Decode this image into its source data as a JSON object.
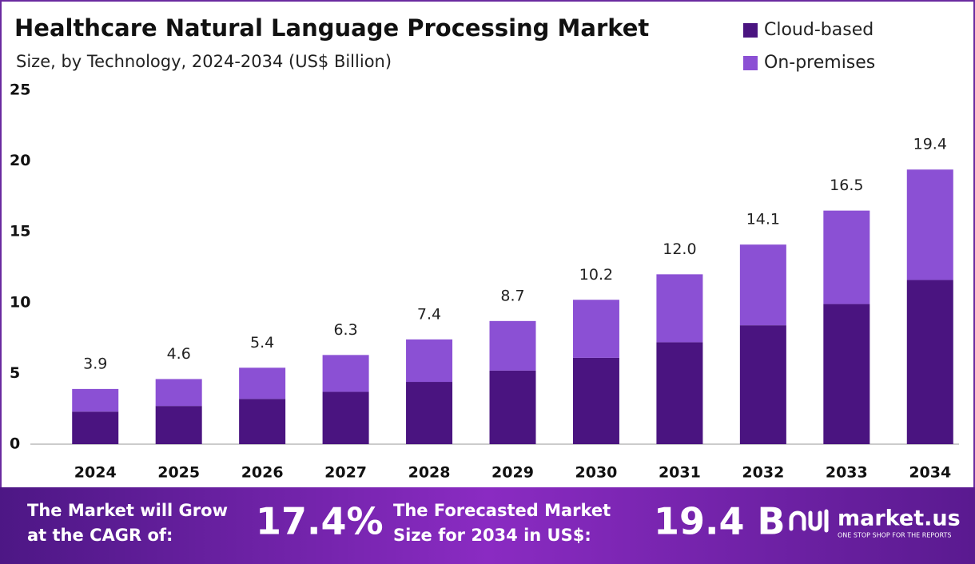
{
  "chart_data": {
    "type": "stacked_bar",
    "title": "Healthcare Natural Language Processing Market",
    "subtitle": "Size, by Technology, 2024-2034 (US$ Billion)",
    "categories": [
      "2024",
      "2025",
      "2026",
      "2027",
      "2028",
      "2029",
      "2030",
      "2031",
      "2032",
      "2033",
      "2034"
    ],
    "series": [
      {
        "name": "Cloud-based",
        "color": "#4a1480",
        "values": [
          2.3,
          2.7,
          3.2,
          3.7,
          4.4,
          5.2,
          6.1,
          7.2,
          8.4,
          9.9,
          11.6
        ]
      },
      {
        "name": "On-premises",
        "color": "#8b50d4",
        "values": [
          1.6,
          1.9,
          2.2,
          2.6,
          3.0,
          3.5,
          4.1,
          4.8,
          5.7,
          6.6,
          7.8
        ]
      }
    ],
    "value_labels": [
      "3.9",
      "4.6",
      "5.4",
      "6.3",
      "7.4",
      "8.7",
      "10.2",
      "12.0",
      "14.1",
      "16.5",
      "19.4"
    ],
    "ylim": [
      0,
      25
    ],
    "yticks": [
      0,
      5,
      10,
      15,
      20,
      25
    ],
    "grid": false,
    "legend": "top-right"
  },
  "footer": {
    "cagr_text": [
      "The Market will Grow",
      "at the CAGR of:"
    ],
    "cagr": "17.4%",
    "forecast_text": [
      "The Forecasted Market",
      "Size for 2034 in US$:"
    ],
    "forecast": "19.4 B",
    "brand": "market.us",
    "tagline": "ONE STOP SHOP FOR THE REPORTS"
  }
}
